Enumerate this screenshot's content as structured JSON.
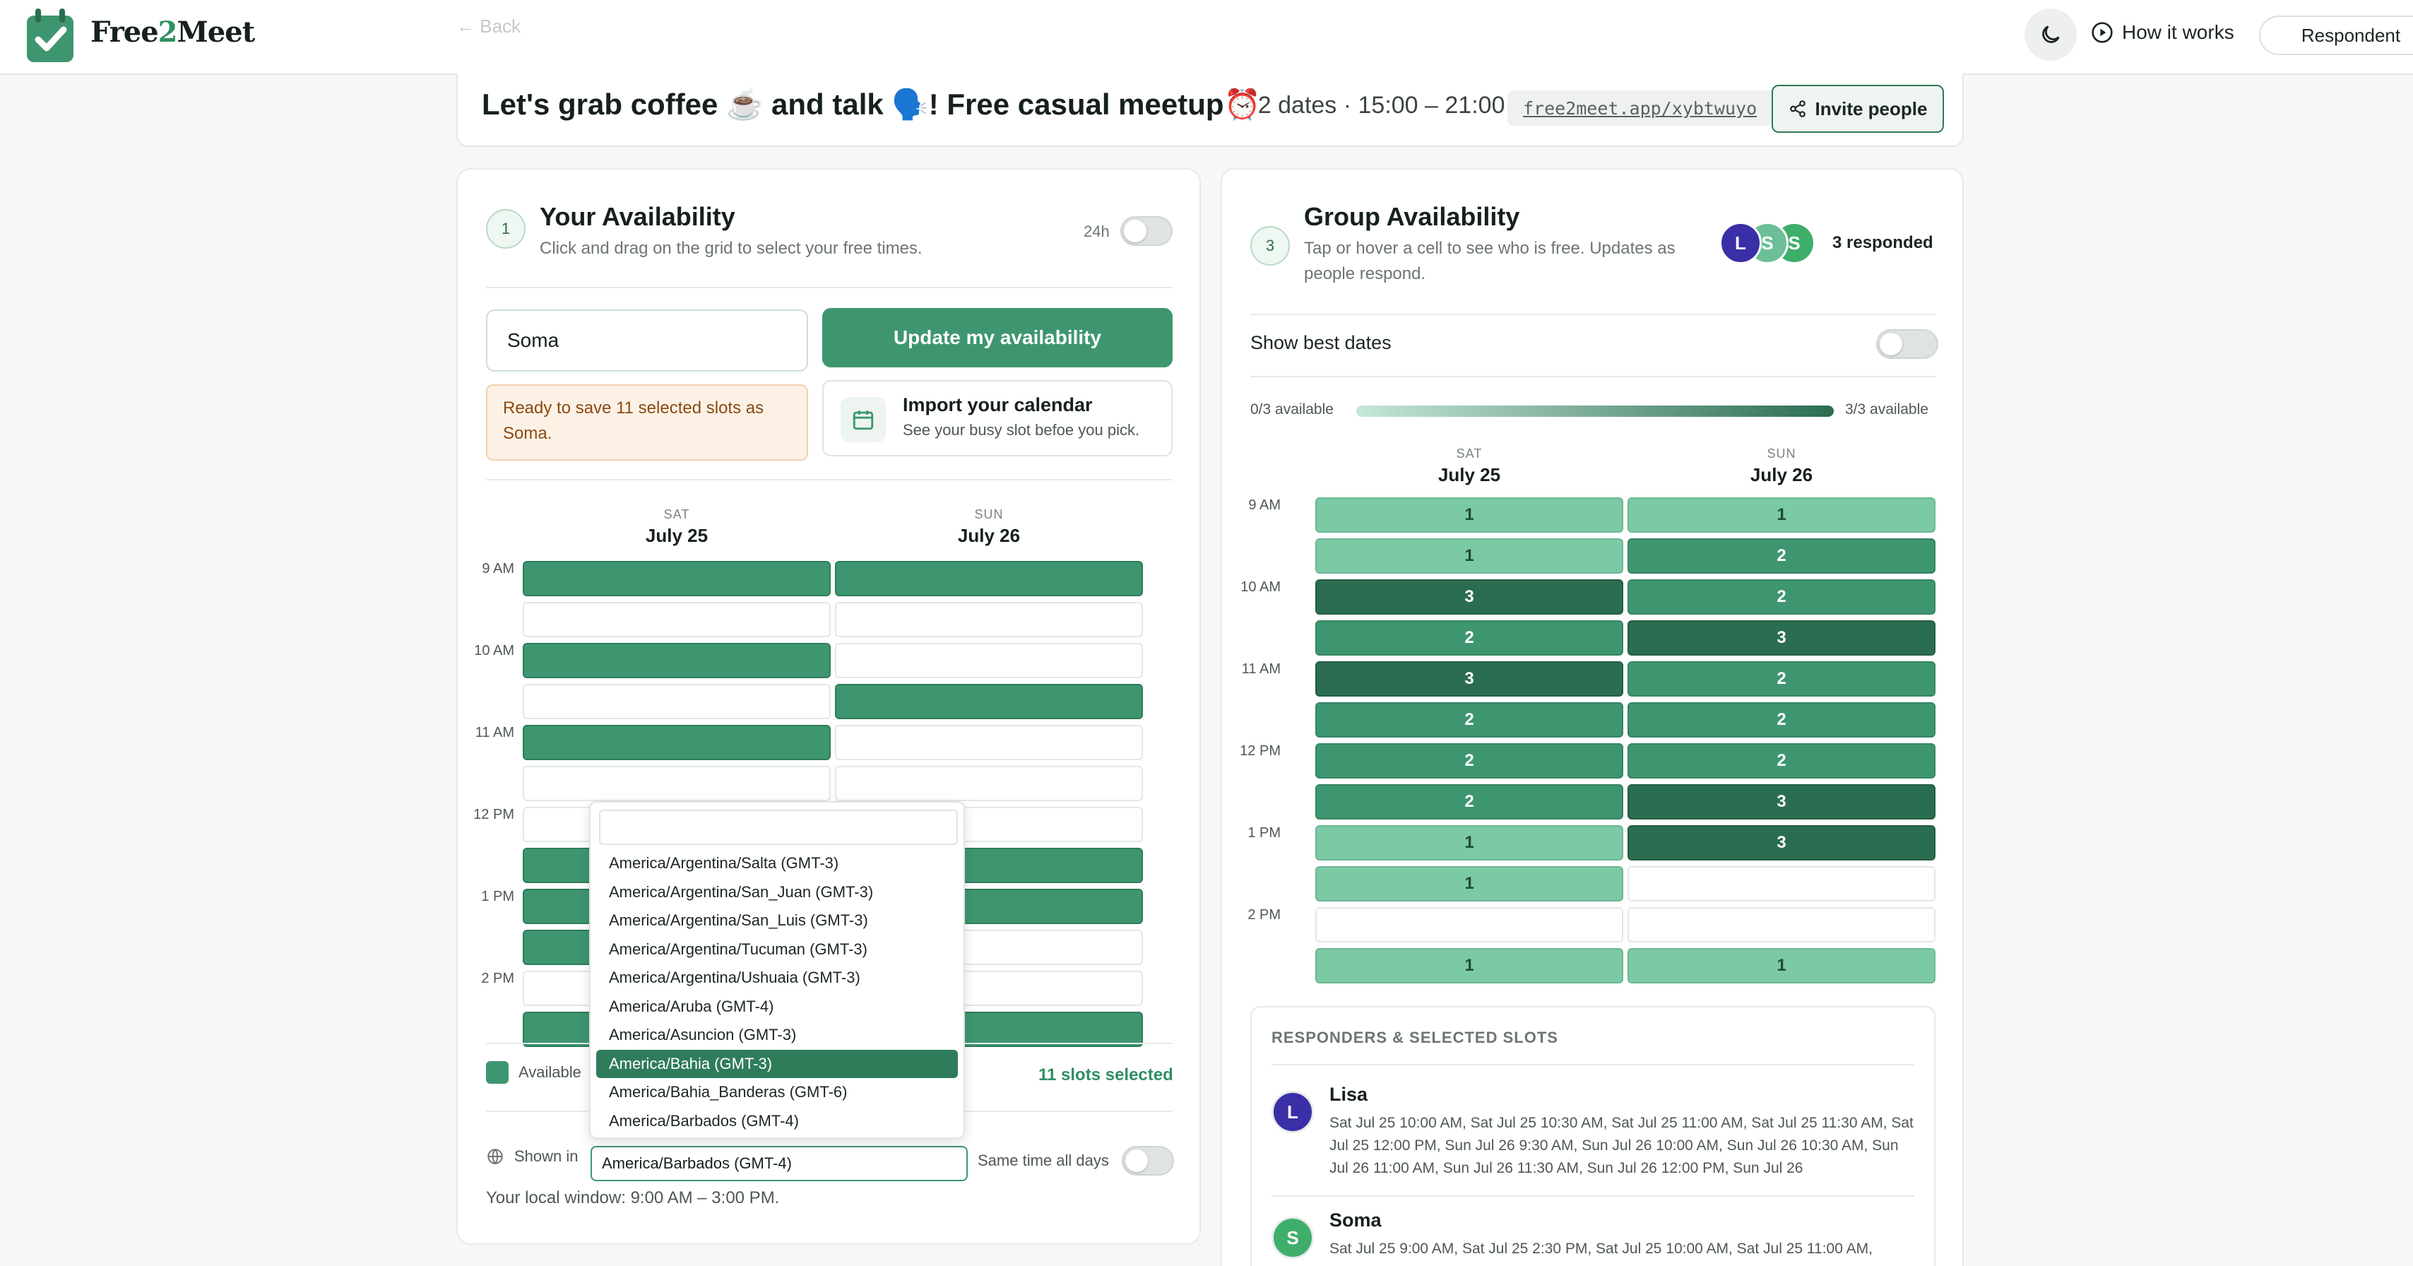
{
  "app": {
    "name_prefix": "Free",
    "name_num": "2",
    "name_suffix": "Meet",
    "back": "← Back",
    "how_it_works": "How it works",
    "respondent": "Respondent"
  },
  "event": {
    "title": "Let's grab coffee ☕️ and talk 🗣️! Free casual meetup⏰",
    "meta": "· 2 dates · 15:00 – 21:00",
    "link": "free2meet.app/xybtwuyo",
    "invite": "Invite people"
  },
  "left": {
    "step": "1",
    "title": "Your Availability",
    "subtitle": "Click and drag on the grid to select your free times.",
    "toggle_label": "24h",
    "name_value": "Soma",
    "update_button": "Update my availability",
    "warning": "Ready to save 11 selected slots as Soma.",
    "import_title": "Import your calendar",
    "import_sub": "See your busy slot befoe you pick.",
    "days": [
      {
        "dow": "SAT",
        "date": "July 25"
      },
      {
        "dow": "SUN",
        "date": "July 26"
      }
    ],
    "times": [
      "9 AM",
      "10 AM",
      "11 AM",
      "12 PM",
      "1 PM",
      "2 PM"
    ],
    "slots": [
      [
        1,
        1
      ],
      [
        0,
        0
      ],
      [
        1,
        0
      ],
      [
        0,
        1
      ],
      [
        1,
        0
      ],
      [
        0,
        0
      ],
      [
        0,
        0
      ],
      [
        1,
        1
      ],
      [
        1,
        1
      ],
      [
        1,
        0
      ],
      [
        0,
        0
      ],
      [
        1,
        1
      ]
    ],
    "legend": "Available",
    "slots_selected": "11 slots selected",
    "shown_in": "Shown in",
    "timezone_value": "America/Barbados (GMT-4)",
    "same_time": "Same time all days",
    "local_window": "Your local window: 9:00 AM – 3:00 PM."
  },
  "dropdown": {
    "options": [
      "America/Argentina/Salta (GMT-3)",
      "America/Argentina/San_Juan (GMT-3)",
      "America/Argentina/San_Luis (GMT-3)",
      "America/Argentina/Tucuman (GMT-3)",
      "America/Argentina/Ushuaia (GMT-3)",
      "America/Aruba (GMT-4)",
      "America/Asuncion (GMT-3)",
      "America/Bahia (GMT-3)",
      "America/Bahia_Banderas (GMT-6)",
      "America/Barbados (GMT-4)"
    ],
    "selected": "America/Bahia (GMT-3)"
  },
  "right": {
    "step": "3",
    "title": "Group Availability",
    "subtitle_1": "Tap or hover a cell to see who is free. Updates as",
    "subtitle_2": "people respond.",
    "avatars": [
      {
        "letter": "L",
        "color": "#3a2fa6"
      },
      {
        "letter": "S",
        "color": "#6cbf98"
      },
      {
        "letter": "S",
        "color": "#3fae6b"
      }
    ],
    "responded": "3 responded",
    "best_dates": "Show best dates",
    "scale_min": "0/3 available",
    "scale_max": "3/3 available",
    "days": [
      {
        "dow": "SAT",
        "date": "July 25"
      },
      {
        "dow": "SUN",
        "date": "July 26"
      }
    ],
    "times": [
      "9 AM",
      "10 AM",
      "11 AM",
      "12 PM",
      "1 PM",
      "2 PM"
    ],
    "counts": [
      [
        1,
        1
      ],
      [
        1,
        2
      ],
      [
        3,
        2
      ],
      [
        2,
        3
      ],
      [
        3,
        2
      ],
      [
        2,
        2
      ],
      [
        2,
        2
      ],
      [
        2,
        3
      ],
      [
        1,
        3
      ],
      [
        1,
        0
      ],
      [
        0,
        0
      ],
      [
        1,
        1
      ]
    ],
    "responders_heading": "RESPONDERS & SELECTED SLOTS",
    "responders": [
      {
        "letter": "L",
        "name": "Lisa",
        "color": "#3a2fa6",
        "slots": "Sat Jul 25 10:00 AM, Sat Jul 25 10:30 AM, Sat Jul 25 11:00 AM, Sat Jul 25 11:30 AM, Sat Jul 25 12:00 PM, Sun Jul 26 9:30 AM, Sun Jul 26 10:00 AM, Sun Jul 26 10:30 AM, Sun Jul 26 11:00 AM, Sun Jul 26 11:30 AM, Sun Jul 26 12:00 PM, Sun Jul 26"
      },
      {
        "letter": "S",
        "name": "Soma",
        "color": "#3fae6b",
        "slots": "Sat Jul 25 9:00 AM, Sat Jul 25 2:30 PM, Sat Jul 25 10:00 AM, Sat Jul 25 11:00 AM,"
      }
    ]
  },
  "colors": {
    "accent": "#3e9670",
    "accent_dark": "#2b6d50",
    "accent_light": "#7cc9a5"
  },
  "icons": [
    "calendar-check-logo",
    "moon-icon",
    "play-circle-icon",
    "share-icon",
    "calendar-icon",
    "globe-icon"
  ]
}
